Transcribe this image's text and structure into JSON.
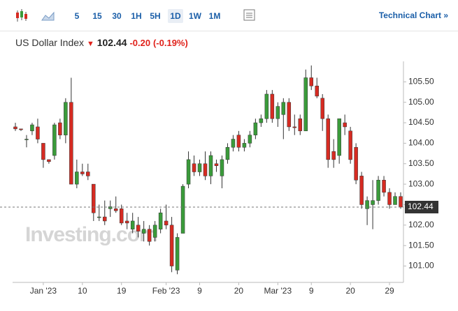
{
  "toolbar": {
    "intervals": [
      "5",
      "15",
      "30",
      "1H",
      "5H",
      "1D",
      "1W",
      "1M"
    ],
    "link": "Technical Chart »"
  },
  "header": {
    "name": "US Dollar Index",
    "change": "-0.20",
    "change_percent": "(-0.19%)"
  },
  "chart_data": {
    "type": "candlestick",
    "watermark": "Investing.com",
    "last_price": 102.44,
    "categories": [
      null,
      null,
      null,
      null,
      null,
      "Jan '23",
      null,
      null,
      null,
      null,
      null,
      null,
      "10",
      null,
      null,
      null,
      null,
      null,
      null,
      "19",
      null,
      null,
      null,
      null,
      null,
      null,
      null,
      "Feb '23",
      null,
      null,
      null,
      null,
      null,
      "9",
      null,
      null,
      null,
      null,
      null,
      null,
      "20",
      null,
      null,
      null,
      null,
      null,
      null,
      "Mar '23",
      null,
      null,
      null,
      null,
      null,
      "9",
      null,
      null,
      null,
      null,
      null,
      null,
      "20",
      null,
      null,
      null,
      null,
      null,
      null,
      "29",
      null,
      null
    ],
    "open": [
      104.4,
      104.35,
      104.1,
      104.3,
      104.4,
      104.0,
      103.6,
      103.7,
      104.5,
      104.2,
      105.0,
      103.0,
      103.3,
      103.3,
      103.0,
      102.2,
      102.2,
      102.4,
      102.4,
      102.4,
      102.1,
      101.9,
      102.0,
      101.8,
      101.9,
      101.7,
      101.9,
      102.1,
      102.0,
      100.9,
      101.8,
      103.0,
      103.5,
      103.3,
      103.5,
      103.2,
      103.5,
      103.2,
      103.6,
      103.9,
      104.2,
      103.9,
      104.0,
      104.2,
      104.5,
      104.6,
      105.2,
      104.6,
      104.7,
      105.0,
      104.4,
      104.6,
      104.3,
      105.6,
      105.4,
      105.1,
      104.6,
      103.8,
      103.7,
      104.5,
      104.3,
      103.9,
      103.2,
      102.4,
      102.5,
      102.6,
      103.1,
      102.8,
      102.5,
      102.7
    ],
    "high": [
      104.5,
      104.35,
      104.2,
      104.5,
      104.6,
      104.0,
      103.6,
      104.5,
      104.6,
      105.1,
      105.6,
      103.6,
      103.5,
      103.5,
      103.0,
      102.5,
      102.6,
      102.6,
      102.7,
      102.5,
      102.3,
      102.3,
      102.2,
      102.1,
      102.0,
      102.1,
      102.4,
      102.5,
      102.2,
      101.8,
      103.0,
      103.8,
      103.7,
      103.6,
      103.8,
      103.8,
      103.6,
      103.7,
      104.0,
      104.2,
      104.3,
      104.1,
      104.3,
      104.6,
      104.7,
      105.3,
      105.3,
      105.0,
      105.1,
      105.1,
      104.7,
      104.7,
      105.8,
      105.9,
      105.6,
      105.2,
      104.7,
      104.1,
      104.6,
      104.7,
      104.4,
      104.0,
      103.3,
      102.7,
      103.1,
      103.2,
      103.2,
      102.9,
      102.8,
      102.8
    ],
    "low": [
      104.3,
      104.3,
      103.9,
      104.2,
      104.0,
      103.4,
      103.5,
      103.6,
      104.1,
      104.0,
      103.0,
      102.9,
      103.2,
      103.1,
      102.1,
      102.1,
      102.0,
      102.2,
      102.3,
      102.0,
      101.9,
      101.8,
      101.7,
      101.6,
      101.5,
      101.6,
      101.8,
      101.9,
      100.85,
      100.8,
      101.8,
      102.9,
      103.2,
      103.2,
      103.1,
      103.0,
      103.3,
      102.9,
      103.5,
      103.8,
      103.8,
      103.8,
      103.9,
      104.1,
      104.4,
      104.5,
      104.5,
      104.4,
      104.1,
      104.3,
      104.2,
      104.2,
      104.3,
      105.3,
      105.1,
      104.3,
      103.4,
      103.4,
      103.5,
      104.2,
      103.5,
      103.0,
      102.4,
      102.0,
      101.9,
      102.5,
      102.7,
      102.4,
      102.5,
      102.4
    ],
    "close": [
      104.35,
      104.33,
      104.1,
      104.45,
      104.1,
      103.6,
      103.55,
      104.45,
      104.2,
      105.0,
      103.0,
      103.3,
      103.25,
      103.2,
      102.3,
      102.2,
      102.1,
      102.45,
      102.35,
      102.05,
      102.05,
      102.1,
      101.85,
      101.9,
      101.6,
      102.0,
      102.3,
      102.0,
      101.0,
      101.7,
      102.95,
      103.6,
      103.3,
      103.5,
      103.2,
      103.7,
      103.45,
      103.6,
      103.9,
      104.1,
      103.9,
      104.0,
      104.2,
      104.5,
      104.6,
      105.2,
      104.6,
      104.9,
      105.0,
      104.4,
      104.38,
      104.3,
      105.6,
      105.4,
      105.15,
      104.6,
      103.6,
      103.6,
      104.6,
      104.4,
      103.6,
      103.1,
      102.5,
      102.6,
      102.6,
      103.1,
      102.8,
      102.5,
      102.7,
      102.44
    ],
    "up_color": "#3a9b3a",
    "down_color": "#d62b22",
    "ylim": [
      100.6,
      106.0
    ],
    "yticks": [
      {
        "value": 101,
        "label": "101.00"
      },
      {
        "value": 101.5,
        "label": "101.50"
      },
      {
        "value": 102,
        "label": "102.00"
      },
      {
        "value": 102.5,
        "label": "102.50"
      },
      {
        "value": 103,
        "label": "103.00"
      },
      {
        "value": 103.5,
        "label": "103.50"
      },
      {
        "value": 104,
        "label": "104.00"
      },
      {
        "value": 104.5,
        "label": "104.50"
      },
      {
        "value": 105,
        "label": "105.00"
      },
      {
        "value": 105.5,
        "label": "105.50"
      }
    ],
    "grid": false
  }
}
